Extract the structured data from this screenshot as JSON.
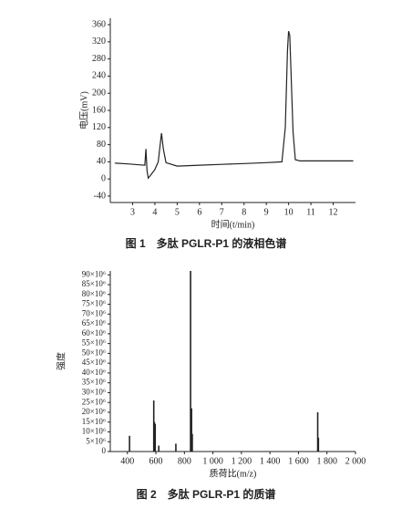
{
  "chart_data": [
    {
      "type": "line",
      "caption": "图 1　多肽 PGLR-P1 的液相色谱",
      "x_label": "时间(t/min)",
      "y_label": "电压(mV)",
      "x": [
        2.2,
        2.8,
        3.3,
        3.55,
        3.6,
        3.65,
        3.7,
        3.8,
        4.0,
        4.15,
        4.25,
        4.3,
        4.38,
        4.5,
        5.0,
        6.0,
        7.0,
        8.0,
        9.0,
        9.7,
        9.85,
        9.95,
        10.0,
        10.05,
        10.1,
        10.2,
        10.3,
        10.5,
        11.0,
        12.0,
        12.9
      ],
      "values": [
        37,
        35,
        33,
        32,
        70,
        20,
        2,
        8,
        22,
        40,
        85,
        107,
        70,
        38,
        30,
        32,
        34,
        36,
        38,
        40,
        120,
        300,
        345,
        335,
        260,
        110,
        45,
        42,
        42,
        42,
        42
      ],
      "color": "#222222",
      "xlim": [
        2,
        13
      ],
      "ylim": [
        -55,
        375
      ],
      "xticks": [
        3,
        4,
        5,
        6,
        7,
        8,
        9,
        10,
        11,
        12
      ],
      "yticks": [
        -40,
        0,
        40,
        80,
        120,
        160,
        200,
        240,
        280,
        320,
        360
      ]
    },
    {
      "type": "bar",
      "caption": "图 2　多肽 PGLR-P1 的质谱",
      "x_label": "质荷比(m/z)",
      "y_label": "强度",
      "x": [
        415,
        585,
        590,
        595,
        620,
        740,
        843,
        850,
        855,
        1735,
        1740
      ],
      "values": [
        8000000,
        26000000,
        15000000,
        14000000,
        3000000,
        4000000,
        92000000,
        22000000,
        9000000,
        20000000,
        7000000
      ],
      "color": "#222222",
      "xlim": [
        280,
        2000
      ],
      "ylim": [
        0,
        92000000
      ],
      "xticks": [
        400,
        600,
        800,
        {
          "value": 1000,
          "label": "1 000"
        },
        {
          "value": 1200,
          "label": "1 200"
        },
        {
          "value": 1400,
          "label": "1 400"
        },
        {
          "value": 1600,
          "label": "1 600"
        },
        {
          "value": 1800,
          "label": "1 800"
        },
        {
          "value": 2000,
          "label": "2 000"
        }
      ],
      "yticks": [
        0,
        {
          "value": 5000000,
          "label": "5×10⁶"
        },
        {
          "value": 10000000,
          "label": "10×10⁶"
        },
        {
          "value": 15000000,
          "label": "15×10⁶"
        },
        {
          "value": 20000000,
          "label": "20×10⁶"
        },
        {
          "value": 25000000,
          "label": "25×10⁶"
        },
        {
          "value": 30000000,
          "label": "30×10⁶"
        },
        {
          "value": 35000000,
          "label": "35×10⁶"
        },
        {
          "value": 40000000,
          "label": "40×10⁶"
        },
        {
          "value": 45000000,
          "label": "45×10⁶"
        },
        {
          "value": 50000000,
          "label": "50×10⁶"
        },
        {
          "value": 55000000,
          "label": "55×10⁶"
        },
        {
          "value": 60000000,
          "label": "60×10⁶"
        },
        {
          "value": 65000000,
          "label": "65×10⁶"
        },
        {
          "value": 70000000,
          "label": "70×10⁶"
        },
        {
          "value": 75000000,
          "label": "75×10⁶"
        },
        {
          "value": 80000000,
          "label": "80×10⁶"
        },
        {
          "value": 85000000,
          "label": "85×10⁶"
        },
        {
          "value": 90000000,
          "label": "90×10⁶"
        }
      ]
    }
  ]
}
